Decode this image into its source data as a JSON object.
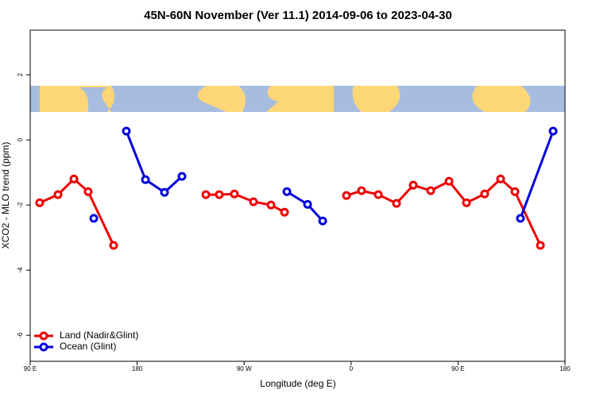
{
  "chart_data": {
    "type": "line",
    "title": "45N-60N November (Ver 11.1)   2014-09-06 to 2023-04-30",
    "xlabel": "Longitude (deg E)",
    "ylabel": "XCO2 - MLO trend (ppm)",
    "xlim": [
      90,
      540
    ],
    "ylim": [
      -6.8,
      3.37
    ],
    "xticks": [
      {
        "value": 90,
        "label": "90 E"
      },
      180,
      {
        "value": 270,
        "label": "90 W"
      },
      {
        "value": 360,
        "label": "0"
      },
      {
        "value": 450,
        "label": "90 E"
      },
      {
        "value": 540,
        "label": "180"
      }
    ],
    "yticks": [
      2,
      0,
      -2,
      -4,
      -6
    ],
    "legend": "bottom-left",
    "series": [
      {
        "name": "Land (Nadir&Glint)",
        "color": "#ee0000",
        "x": [
          98,
          113.4,
          126.8,
          138.8,
          160.2,
          null,
          237.8,
          249.1,
          261.8,
          277.9,
          292.6,
          304,
          null,
          356.1,
          368.8,
          382.9,
          398.2,
          412.3,
          427,
          442.4,
          457.1,
          472.4,
          485.8,
          497.9,
          519.3
        ],
        "values": [
          -1.93,
          -1.68,
          -1.2,
          -1.59,
          -3.24,
          null,
          -1.68,
          -1.68,
          -1.66,
          -1.9,
          -2.0,
          -2.22,
          null,
          -1.71,
          -1.56,
          -1.68,
          -1.95,
          -1.39,
          -1.56,
          -1.27,
          -1.93,
          -1.66,
          -1.2,
          -1.59,
          -3.24
        ]
      },
      {
        "name": "Ocean (Glint)",
        "color": "#0000dd",
        "x": [
          143.5,
          null,
          170.9,
          187,
          203,
          217.7,
          null,
          306,
          323.4,
          336.1,
          null,
          502.5,
          530
        ],
        "values": [
          -2.41,
          null,
          0.27,
          -1.22,
          -1.61,
          -1.12,
          null,
          -1.59,
          -1.98,
          -2.49,
          null,
          -2.41,
          0.27
        ]
      }
    ]
  }
}
